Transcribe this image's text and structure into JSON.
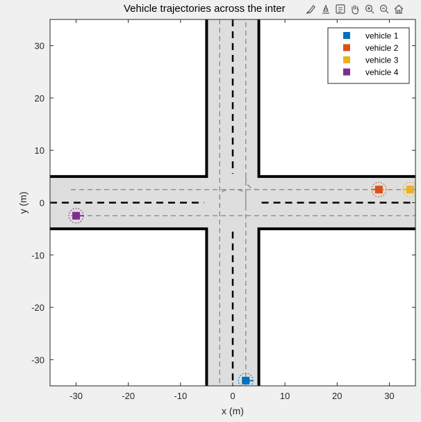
{
  "chart_data": {
    "type": "scatter",
    "title": "Vehicle trajectories across the inter",
    "xlabel": "x (m)",
    "ylabel": "y (m)",
    "xlim": [
      -35,
      35
    ],
    "ylim": [
      -35,
      35
    ],
    "xticks": [
      -30,
      -20,
      -10,
      0,
      10,
      20,
      30
    ],
    "yticks": [
      -30,
      -20,
      -10,
      0,
      10,
      20,
      30
    ],
    "grid": false,
    "legend_position": "top-right",
    "road": {
      "vertical_road_x": [
        -5,
        5
      ],
      "horizontal_road_y": [
        -5,
        5
      ],
      "lane_center_offset": 2.5
    },
    "series": [
      {
        "name": "vehicle 1",
        "color": "#0072bd",
        "x": 2.5,
        "y": -34,
        "heading": "east"
      },
      {
        "name": "vehicle 2",
        "color": "#d95319",
        "x": 28,
        "y": 2.5,
        "heading": "west"
      },
      {
        "name": "vehicle 3",
        "color": "#edb120",
        "x": 34,
        "y": 2.5,
        "heading": "west"
      },
      {
        "name": "vehicle 4",
        "color": "#7e2f8e",
        "x": -30,
        "y": -2.5,
        "heading": "east"
      }
    ]
  },
  "toolbar": {
    "icons": [
      "brush-icon",
      "datatip-icon",
      "legend-toggle-icon",
      "pan-hand-icon",
      "zoom-in-icon",
      "zoom-out-icon",
      "home-icon"
    ]
  }
}
